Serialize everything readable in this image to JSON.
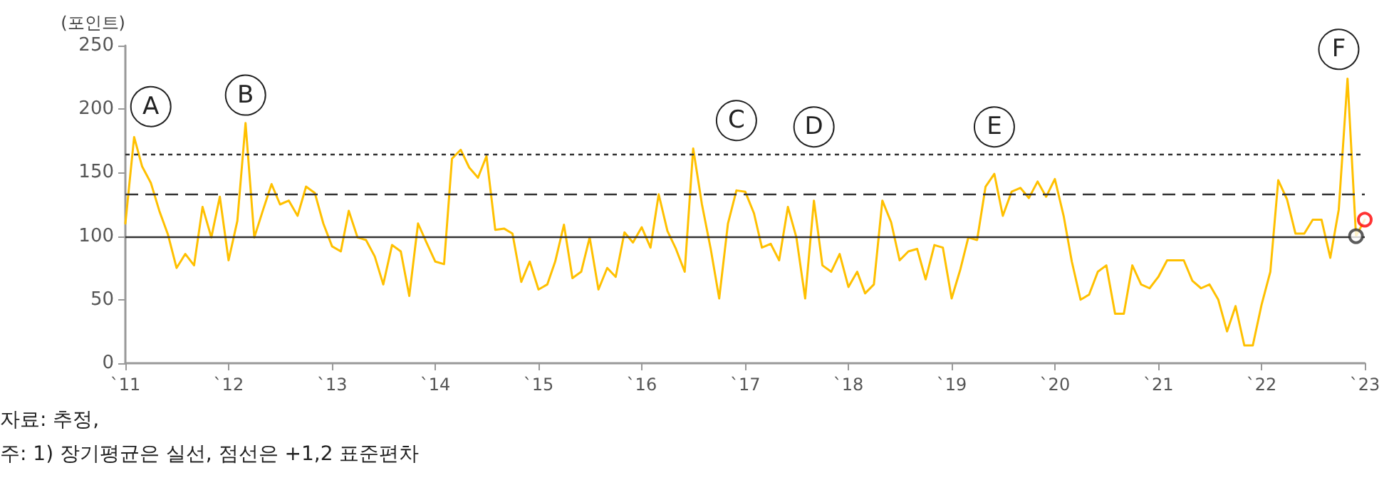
{
  "chart_data": {
    "type": "line",
    "ylabel": "(포인트)",
    "x": [
      "2011-01",
      "2011-02",
      "2011-03",
      "2011-04",
      "2011-05",
      "2011-06",
      "2011-07",
      "2011-08",
      "2011-09",
      "2011-10",
      "2011-11",
      "2011-12",
      "2012-01",
      "2012-02",
      "2012-03",
      "2012-04",
      "2012-05",
      "2012-06",
      "2012-07",
      "2012-08",
      "2012-09",
      "2012-10",
      "2012-11",
      "2012-12",
      "2013-01",
      "2013-02",
      "2013-03",
      "2013-04",
      "2013-05",
      "2013-06",
      "2013-07",
      "2013-08",
      "2013-09",
      "2013-10",
      "2013-11",
      "2013-12",
      "2014-01",
      "2014-02",
      "2014-03",
      "2014-04",
      "2014-05",
      "2014-06",
      "2014-07",
      "2014-08",
      "2014-09",
      "2014-10",
      "2014-11",
      "2014-12",
      "2015-01",
      "2015-02",
      "2015-03",
      "2015-04",
      "2015-05",
      "2015-06",
      "2015-07",
      "2015-08",
      "2015-09",
      "2015-10",
      "2015-11",
      "2015-12",
      "2016-01",
      "2016-02",
      "2016-03",
      "2016-04",
      "2016-05",
      "2016-06",
      "2016-07",
      "2016-08",
      "2016-09",
      "2016-10",
      "2016-11",
      "2016-12",
      "2017-01",
      "2017-02",
      "2017-03",
      "2017-04",
      "2017-05",
      "2017-06",
      "2017-07",
      "2017-08",
      "2017-09",
      "2017-10",
      "2017-11",
      "2017-12",
      "2018-01",
      "2018-02",
      "2018-03",
      "2018-04",
      "2018-05",
      "2018-06",
      "2018-07",
      "2018-08",
      "2018-09",
      "2018-10",
      "2018-11",
      "2018-12",
      "2019-01",
      "2019-02",
      "2019-03",
      "2019-04",
      "2019-05",
      "2019-06",
      "2019-07",
      "2019-08",
      "2019-09",
      "2019-10",
      "2019-11",
      "2019-12",
      "2020-01",
      "2020-02",
      "2020-03",
      "2020-04",
      "2020-05",
      "2020-06",
      "2020-07",
      "2020-08",
      "2020-09",
      "2020-10",
      "2020-11",
      "2020-12",
      "2021-01",
      "2021-02",
      "2021-03",
      "2021-04",
      "2021-05",
      "2021-06",
      "2021-07",
      "2021-08",
      "2021-09",
      "2021-10",
      "2021-11",
      "2021-12",
      "2022-01",
      "2022-02",
      "2022-03",
      "2022-04",
      "2022-05",
      "2022-06",
      "2022-07",
      "2022-08",
      "2022-09",
      "2022-10",
      "2022-11",
      "2022-12",
      "2023-01"
    ],
    "series": [
      {
        "color": "#ffc000",
        "values": [
          110,
          178,
          155,
          142,
          120,
          101,
          75,
          86,
          77,
          123,
          99,
          131,
          81,
          112,
          189,
          99,
          120,
          141,
          125,
          128,
          116,
          139,
          134,
          110,
          92,
          88,
          120,
          99,
          97,
          84,
          62,
          93,
          88,
          53,
          110,
          95,
          80,
          78,
          161,
          168,
          154,
          146,
          163,
          105,
          106,
          102,
          64,
          80,
          58,
          62,
          80,
          109,
          67,
          72,
          99,
          58,
          75,
          68,
          103,
          95,
          107,
          91,
          133,
          104,
          90,
          72,
          169,
          125,
          90,
          51,
          110,
          136,
          135,
          118,
          91,
          94,
          81,
          123,
          99,
          51,
          128,
          77,
          72,
          86,
          60,
          72,
          55,
          62,
          128,
          111,
          81,
          88,
          90,
          66,
          93,
          91,
          51,
          74,
          99,
          97,
          139,
          149,
          116,
          135,
          138,
          130,
          143,
          131,
          145,
          116,
          80,
          50,
          54,
          72,
          77,
          39,
          39,
          77,
          62,
          59,
          68,
          81,
          81,
          81,
          65,
          59,
          62,
          50,
          25,
          45,
          14,
          14,
          46,
          72,
          144,
          129,
          102,
          102,
          113,
          113,
          83,
          121,
          224,
          100,
          113
        ]
      },
      {
        "type": "scatter",
        "marker": "circle",
        "color": "#333333",
        "x": [
          "2022-12"
        ],
        "values": [
          100
        ]
      },
      {
        "type": "scatter",
        "marker": "circle",
        "color": "#ff0000",
        "x": [
          "2023-01"
        ],
        "values": [
          113
        ]
      }
    ],
    "xlim": [
      "2011-01",
      "2023-01"
    ],
    "xticks": [
      {
        "value": "2011-01",
        "label": "`11"
      },
      {
        "value": "2012-01",
        "label": "`12"
      },
      {
        "value": "2013-01",
        "label": "`13"
      },
      {
        "value": "2014-01",
        "label": "`14"
      },
      {
        "value": "2015-01",
        "label": "`15"
      },
      {
        "value": "2016-01",
        "label": "`16"
      },
      {
        "value": "2017-01",
        "label": "`17"
      },
      {
        "value": "2018-01",
        "label": "`18"
      },
      {
        "value": "2019-01",
        "label": "`19"
      },
      {
        "value": "2020-01",
        "label": "`20"
      },
      {
        "value": "2021-01",
        "label": "`21"
      },
      {
        "value": "2022-01",
        "label": "`22"
      },
      {
        "value": "2023-01",
        "label": "`23"
      }
    ],
    "ylim": [
      0,
      250
    ],
    "yticks": [
      0,
      50,
      100,
      150,
      200,
      250
    ],
    "ref_lines": [
      {
        "axis": "y",
        "value": 100,
        "color": "#333333",
        "line_style": "solid"
      },
      {
        "axis": "y",
        "value": 133,
        "color": "#333333",
        "line_style": "dashed"
      },
      {
        "axis": "y",
        "value": 165,
        "color": "#333333",
        "line_style": "dotted"
      }
    ],
    "annotations": [
      {
        "text": "A",
        "x": "2011-04",
        "y": 202
      },
      {
        "text": "B",
        "x": "2012-03",
        "y": 211
      },
      {
        "text": "C",
        "x": "2016-12",
        "y": 191
      },
      {
        "text": "D",
        "x": "2017-09",
        "y": 186
      },
      {
        "text": "E",
        "x": "2019-06",
        "y": 186
      },
      {
        "text": "F",
        "x": "2022-10",
        "y": 247
      },
      "자료: 추정,",
      "주: 1) 장기평균은 실선, 점선은 +1,2 표준편차"
    ],
    "grid": false,
    "marker": "none",
    "line_style": "solid"
  }
}
